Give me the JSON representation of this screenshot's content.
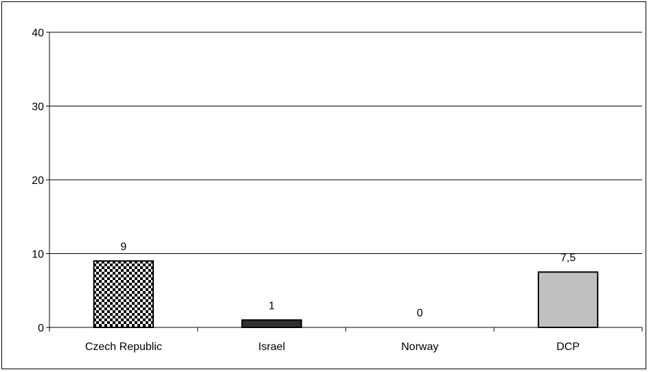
{
  "chart_data": {
    "type": "bar",
    "title": "",
    "xlabel": "",
    "ylabel": "",
    "categories": [
      "Czech Republic",
      "Israel",
      "Norway",
      "DCP"
    ],
    "values": [
      9,
      1,
      0,
      7.5
    ],
    "value_labels": [
      "9",
      "1",
      "0",
      "7,5"
    ],
    "bar_fills": [
      "checkerboard",
      "#303030",
      "#ffffff",
      "#c0c0c0"
    ],
    "ylim": [
      0,
      40
    ],
    "yticks": [
      0,
      10,
      20,
      30,
      40
    ],
    "ytick_labels": [
      "0",
      "10",
      "20",
      "30",
      "40"
    ],
    "grid": true,
    "legend": "none"
  }
}
